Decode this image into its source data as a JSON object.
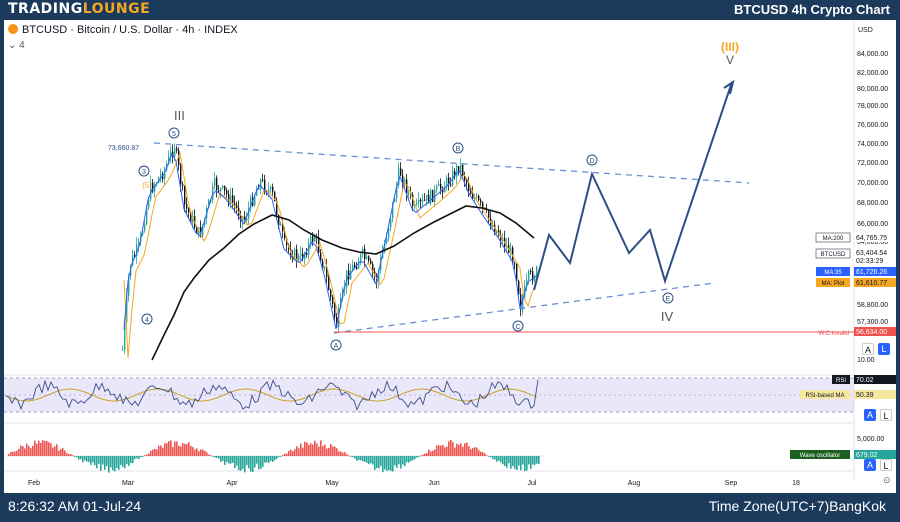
{
  "brand": {
    "prefix": "TRADING",
    "suffix": "LOUNGE"
  },
  "title": "BTCUSD 4h Crypto Chart",
  "symbol_header": "BTCUSD · Bitcoin / U.S. Dollar · 4h · INDEX",
  "indicator_count": "4",
  "footer": {
    "datetime": "8:26:32 AM 01-Jul-24",
    "timezone": "Time Zone(UTC+7)BangKok"
  },
  "price_axis": {
    "currency": "USD",
    "ticks": [
      "84,000.00",
      "82,000.00",
      "80,000.00",
      "78,000.00",
      "76,000.00",
      "74,000.00",
      "72,000.00",
      "70,000.00",
      "68,000.00",
      "66,000.00",
      "64,000.00",
      "58,800.00",
      "57,300.00"
    ],
    "osc_ticks": [
      "10.00",
      "5,000.00"
    ]
  },
  "time_axis": [
    "Feb",
    "Mar",
    "Apr",
    "May",
    "Jun",
    "Jul",
    "Aug",
    "Sep",
    "18"
  ],
  "labels": {
    "ma200": {
      "name": "MA:200",
      "value": "64,765.75"
    },
    "btcusd": {
      "name": "BTCUSD",
      "value": "63,404.54",
      "countdown": "02:33:29"
    },
    "ma35": {
      "name": "MA:35",
      "value": "61,726.26"
    },
    "maplot": {
      "name": "MA: Plot",
      "value": "61,610.77"
    },
    "invalid": {
      "name": "W.C.Invalid",
      "value": "56,634.00"
    },
    "rsi": {
      "name": "RSI",
      "value": "70.02"
    },
    "rsi_ma": {
      "name": "RSI-based MA",
      "value": "50.39"
    },
    "wave": {
      "name": "Wave oscillator",
      "value": "679.02"
    }
  },
  "high_label": "73,660.87",
  "waves": {
    "degree_top": "(III)",
    "top_v": "V",
    "iii": "III",
    "iv": "IV",
    "minor": [
      "A",
      "B",
      "C",
      "D",
      "E"
    ],
    "impulse": [
      "3",
      "(5)",
      "4",
      "5"
    ]
  },
  "buttons": {
    "a": "A",
    "l": "L"
  },
  "colors": {
    "up": "#26a69a",
    "down": "#ef5350",
    "projection": "#2c4e86",
    "trend": "#6a8fd0",
    "invalid": "#ef5350",
    "rsi_band": "#d9d4f2",
    "accent": "#f5a623"
  }
}
